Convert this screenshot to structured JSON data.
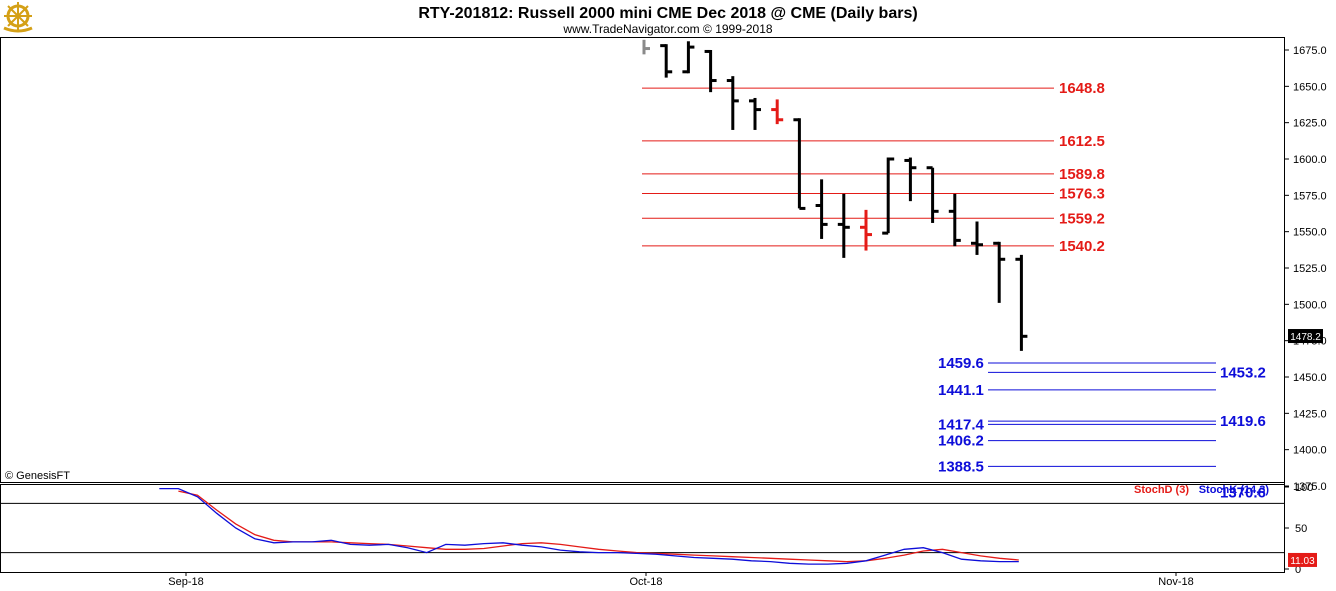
{
  "header": {
    "title": "RTY-201812:  Russell 2000 mini CME Dec 2018 @ CME  (Daily bars)",
    "subtitle": "www.TradeNavigator.com © 1999-2018"
  },
  "logo_icon": "ship-wheel-logo",
  "watermark": "© GenesisFT",
  "colors": {
    "price_bar": "#000000",
    "down_highlight": "#e41b17",
    "resistance": "#e41b17",
    "support": "#0d0dd9",
    "stoch_d": "#e41b17",
    "stoch_k": "#0d0dd9",
    "last_box": "#000000",
    "stoch_box": "#e41b17"
  },
  "chart_data": [
    {
      "type": "ohlc",
      "title": "RTY-201812:  Russell 2000 mini CME Dec 2018 @ CME  (Daily bars)",
      "y_ticks": [
        "1675.0",
        "1650.0",
        "1625.0",
        "1600.0",
        "1575.0",
        "1550.0",
        "1525.0",
        "1500.0",
        "1475.0",
        "1450.0",
        "1425.0",
        "1400.0",
        "1375.0"
      ],
      "ylim": [
        1371,
        1682
      ],
      "x_labels": [
        "Sep-18",
        "Oct-18",
        "Nov-18"
      ],
      "last_price": "1478.2",
      "bars": [
        {
          "o": null,
          "h": 1682,
          "l": 1672,
          "c": 1676,
          "color": "gray"
        },
        {
          "o": 1678,
          "h": 1679,
          "l": 1656,
          "c": 1660,
          "color": "black"
        },
        {
          "o": 1660,
          "h": 1681,
          "l": 1659,
          "c": 1677,
          "color": "black"
        },
        {
          "o": 1674,
          "h": 1675,
          "l": 1646,
          "c": 1654,
          "color": "black"
        },
        {
          "o": 1654,
          "h": 1657,
          "l": 1620,
          "c": 1640,
          "color": "black"
        },
        {
          "o": 1640,
          "h": 1642,
          "l": 1620,
          "c": 1634,
          "color": "black"
        },
        {
          "o": 1634,
          "h": 1641,
          "l": 1624,
          "c": 1627,
          "color": "red"
        },
        {
          "o": 1627,
          "h": 1628,
          "l": 1566,
          "c": 1566,
          "color": "black"
        },
        {
          "o": 1568,
          "h": 1586,
          "l": 1545,
          "c": 1555,
          "color": "black"
        },
        {
          "o": 1555,
          "h": 1576,
          "l": 1532,
          "c": 1553,
          "color": "black"
        },
        {
          "o": 1553,
          "h": 1565,
          "l": 1537,
          "c": 1548,
          "color": "red"
        },
        {
          "o": 1549,
          "h": 1601,
          "l": 1549,
          "c": 1600,
          "color": "black"
        },
        {
          "o": 1599,
          "h": 1601,
          "l": 1571,
          "c": 1594,
          "color": "black"
        },
        {
          "o": 1594,
          "h": 1594,
          "l": 1556,
          "c": 1564,
          "color": "black"
        },
        {
          "o": 1564,
          "h": 1576,
          "l": 1540,
          "c": 1544,
          "color": "black"
        },
        {
          "o": 1542,
          "h": 1557,
          "l": 1534,
          "c": 1541,
          "color": "black"
        },
        {
          "o": 1542,
          "h": 1543,
          "l": 1501,
          "c": 1531,
          "color": "black"
        },
        {
          "o": 1531,
          "h": 1534,
          "l": 1468,
          "c": 1478,
          "color": "black"
        }
      ],
      "resistance_levels": [
        "1648.8",
        "1612.5",
        "1589.8",
        "1576.3",
        "1559.2",
        "1540.2"
      ],
      "support_levels_left": [
        "1459.6",
        "1441.1",
        "1417.4",
        "1406.2",
        "1388.5"
      ],
      "support_levels_right": [
        "1453.2",
        "1419.6",
        "1370.6"
      ]
    },
    {
      "type": "line",
      "title": "",
      "y_ticks": [
        "100",
        "50",
        "0"
      ],
      "ylim": [
        0,
        100
      ],
      "reference_lines": [
        80,
        20
      ],
      "last_value": "11.03",
      "series": [
        {
          "name": "StochD (3)",
          "color": "#e41b17",
          "values": [
            null,
            null,
            null,
            null,
            null,
            null,
            null,
            null,
            null,
            95,
            90,
            72,
            55,
            42,
            35,
            33,
            33,
            33,
            32,
            31,
            30,
            28,
            26,
            24,
            24,
            25,
            28,
            31,
            32,
            30,
            27,
            24,
            22,
            20,
            19,
            18,
            17,
            16,
            15,
            14,
            13,
            12,
            11,
            10,
            9,
            10,
            13,
            17,
            22,
            24,
            20,
            16,
            13,
            11
          ]
        },
        {
          "name": "StochK (14,3)",
          "color": "#0d0dd9",
          "values": [
            null,
            null,
            null,
            null,
            null,
            null,
            null,
            null,
            98,
            98,
            88,
            68,
            50,
            37,
            32,
            33,
            33,
            35,
            30,
            29,
            30,
            26,
            20,
            30,
            29,
            31,
            32,
            29,
            27,
            23,
            21,
            20,
            20,
            19,
            18,
            16,
            14,
            13,
            12,
            10,
            9,
            7,
            6,
            6,
            7,
            10,
            17,
            24,
            26,
            20,
            12,
            10,
            9,
            9
          ]
        }
      ]
    }
  ]
}
